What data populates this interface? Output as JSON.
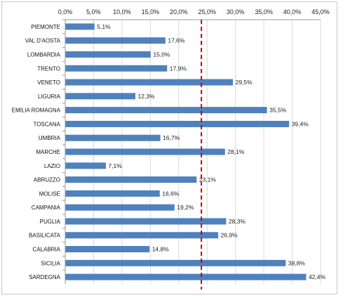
{
  "chart_data": {
    "type": "bar",
    "orientation": "horizontal",
    "title": "",
    "xlabel": "",
    "ylabel": "",
    "xlim": [
      0,
      45
    ],
    "x_ticks": [
      "0,0%",
      "5,0%",
      "10,0%",
      "15,0%",
      "20,0%",
      "25,0%",
      "30,0%",
      "35,0%",
      "40,0%",
      "45,0%"
    ],
    "x_axis_position": "top",
    "gridlines": true,
    "bar_color": "#4f81bd",
    "reference_line": {
      "value": 24.0,
      "style": "dashed",
      "color": "#cc0000"
    },
    "categories": [
      "PIEMONTE",
      "VAL D'AOSTA",
      "LOMBARDIA",
      "TRENTO",
      "VENETO",
      "LIGURIA",
      "EMILIA ROMAGNA",
      "TOSCANA",
      "UMBRIA",
      "MARCHE",
      "LAZIO",
      "ABRUZZO",
      "MOLISE",
      "CAMPANIA",
      "PUGLIA",
      "BASILICATA",
      "CALABRIA",
      "SICILIA",
      "SARDEGNA"
    ],
    "values": [
      5.1,
      17.6,
      15.0,
      17.9,
      29.5,
      12.3,
      35.5,
      39.4,
      16.7,
      28.1,
      7.1,
      23.1,
      16.6,
      19.2,
      28.3,
      26.9,
      14.8,
      38.8,
      42.4
    ],
    "value_labels": [
      "5,1%",
      "17,6%",
      "15,0%",
      "17,9%",
      "29,5%",
      "12,3%",
      "35,5%",
      "39,4%",
      "16,7%",
      "28,1%",
      "7,1%",
      "23,1%",
      "16,6%",
      "19,2%",
      "28,3%",
      "26,9%",
      "14,8%",
      "38,8%",
      "42,4%"
    ]
  }
}
